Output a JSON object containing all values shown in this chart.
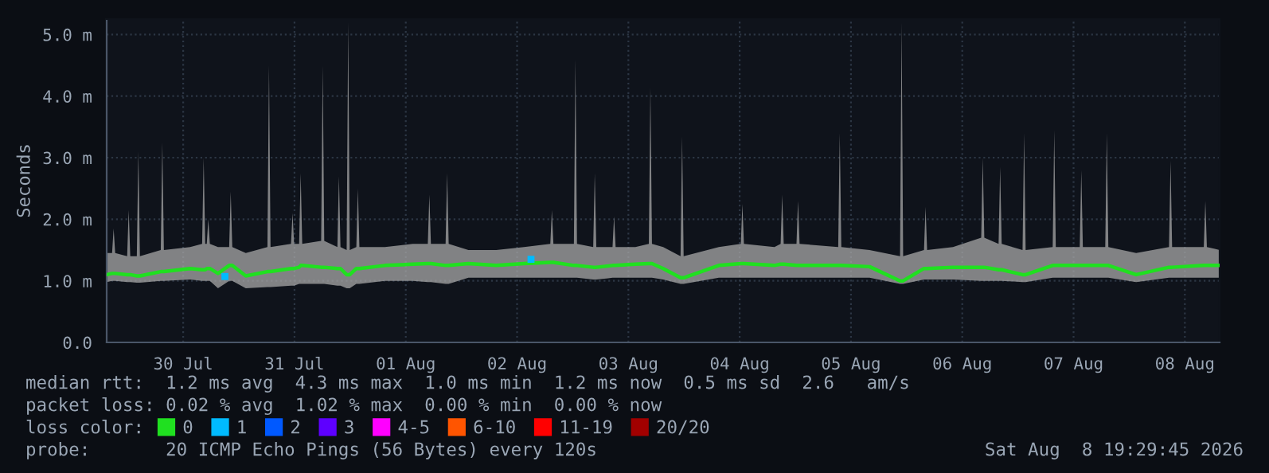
{
  "chart_data": {
    "type": "line",
    "ylabel": "Seconds",
    "xlim": [
      "2026-07-29T19:30",
      "2026-08-08T19:30"
    ],
    "xticks": [
      {
        "value": "2026-07-30T12:00",
        "label": "30 Jul"
      },
      {
        "value": "2026-07-31T12:00",
        "label": "31 Jul"
      },
      {
        "value": "2026-08-01T12:00",
        "label": "01 Aug"
      },
      {
        "value": "2026-08-02T12:00",
        "label": "02 Aug"
      },
      {
        "value": "2026-08-03T12:00",
        "label": "03 Aug"
      },
      {
        "value": "2026-08-04T12:00",
        "label": "04 Aug"
      },
      {
        "value": "2026-08-05T12:00",
        "label": "05 Aug"
      },
      {
        "value": "2026-08-06T12:00",
        "label": "06 Aug"
      },
      {
        "value": "2026-08-07T12:00",
        "label": "07 Aug"
      },
      {
        "value": "2026-08-08T12:00",
        "label": "08 Aug"
      }
    ],
    "ylim": [
      0,
      5.25
    ],
    "yticks": [
      {
        "value": 0,
        "label": "0.0"
      },
      {
        "value": 1,
        "label": "1.0 m"
      },
      {
        "value": 2,
        "label": "2.0 m"
      },
      {
        "value": 3,
        "label": "3.0 m"
      },
      {
        "value": 4,
        "label": "4.0 m"
      },
      {
        "value": 5,
        "label": "5.0 m"
      }
    ],
    "grid": true,
    "legend": "bottom",
    "legend_title": "loss color:",
    "series": [
      {
        "name": "0",
        "color": "#20e020",
        "x": [
          "2026-07-29T19:30",
          "2026-07-29T20:40",
          "2026-07-29T21:00",
          "2026-07-29T21:20",
          "2026-07-29T23:55",
          "2026-07-30T00:15",
          "2026-07-30T00:35",
          "2026-07-30T02:00",
          "2026-07-30T02:20",
          "2026-07-30T02:40",
          "2026-07-30T07:10",
          "2026-07-30T07:30",
          "2026-07-30T07:50",
          "2026-07-30T13:30",
          "2026-07-30T16:05",
          "2026-07-30T16:25",
          "2026-07-30T16:45",
          "2026-07-30T17:05",
          "2026-07-30T17:25",
          "2026-07-30T17:45",
          "2026-07-30T19:30",
          "2026-07-30T21:55",
          "2026-07-30T22:15",
          "2026-07-30T22:35",
          "2026-07-31T01:30",
          "2026-07-31T06:10",
          "2026-07-31T06:30",
          "2026-07-31T06:50",
          "2026-07-31T11:15",
          "2026-07-31T11:35",
          "2026-07-31T11:55",
          "2026-07-31T13:00",
          "2026-07-31T13:20",
          "2026-07-31T13:40",
          "2026-07-31T17:45",
          "2026-07-31T18:05",
          "2026-07-31T18:25",
          "2026-07-31T21:15",
          "2026-07-31T21:35",
          "2026-07-31T21:55",
          "2026-07-31T23:15",
          "2026-07-31T23:35",
          "2026-07-31T23:55",
          "2026-08-01T01:20",
          "2026-08-01T01:40",
          "2026-08-01T02:00",
          "2026-08-01T07:30",
          "2026-08-01T13:30",
          "2026-08-01T16:45",
          "2026-08-01T17:05",
          "2026-08-01T17:25",
          "2026-08-01T20:35",
          "2026-08-01T20:55",
          "2026-08-01T21:15",
          "2026-08-02T01:30",
          "2026-08-02T07:30",
          "2026-08-02T13:30",
          "2026-08-02T19:10",
          "2026-08-02T19:30",
          "2026-08-02T19:50",
          "2026-08-03T00:15",
          "2026-08-03T00:35",
          "2026-08-03T00:55",
          "2026-08-03T04:25",
          "2026-08-03T04:45",
          "2026-08-03T05:05",
          "2026-08-03T08:35",
          "2026-08-03T08:55",
          "2026-08-03T09:15",
          "2026-08-03T13:30",
          "2026-08-03T16:25",
          "2026-08-03T16:45",
          "2026-08-03T17:05",
          "2026-08-03T19:30",
          "2026-08-03T23:15",
          "2026-08-03T23:35",
          "2026-08-03T23:55",
          "2026-08-04T07:30",
          "2026-08-04T12:15",
          "2026-08-04T12:35",
          "2026-08-04T12:55",
          "2026-08-04T19:30",
          "2026-08-04T20:50",
          "2026-08-04T21:10",
          "2026-08-04T21:30",
          "2026-08-05T00:15",
          "2026-08-05T00:35",
          "2026-08-05T00:55",
          "2026-08-05T09:15",
          "2026-08-05T09:35",
          "2026-08-05T09:55",
          "2026-08-05T16:00",
          "2026-08-05T22:35",
          "2026-08-05T22:55",
          "2026-08-05T23:15",
          "2026-08-06T03:45",
          "2026-08-06T04:05",
          "2026-08-06T04:25",
          "2026-08-06T10:00",
          "2026-08-06T16:05",
          "2026-08-06T16:25",
          "2026-08-06T16:45",
          "2026-08-06T19:50",
          "2026-08-06T20:10",
          "2026-08-06T20:30",
          "2026-08-07T01:00",
          "2026-08-07T01:20",
          "2026-08-07T01:40",
          "2026-08-07T07:30",
          "2026-08-07T07:50",
          "2026-08-07T08:10",
          "2026-08-07T13:20",
          "2026-08-07T13:40",
          "2026-08-07T14:00",
          "2026-08-07T18:50",
          "2026-08-07T19:10",
          "2026-08-07T19:30",
          "2026-08-08T01:30",
          "2026-08-08T08:35",
          "2026-08-08T08:55",
          "2026-08-08T09:15",
          "2026-08-08T16:05",
          "2026-08-08T16:25",
          "2026-08-08T16:45",
          "2026-08-08T19:30"
        ],
        "values": [
          1.1,
          1.12,
          1.12,
          1.12,
          1.1,
          1.1,
          1.1,
          1.08,
          1.08,
          1.08,
          1.15,
          1.15,
          1.15,
          1.2,
          1.18,
          1.18,
          1.18,
          1.2,
          1.2,
          1.2,
          1.12,
          1.25,
          1.25,
          1.25,
          1.08,
          1.15,
          1.15,
          1.15,
          1.2,
          1.2,
          1.2,
          1.22,
          1.25,
          1.25,
          1.22,
          1.22,
          1.22,
          1.2,
          1.2,
          1.2,
          1.1,
          1.1,
          1.1,
          1.2,
          1.2,
          1.2,
          1.25,
          1.27,
          1.28,
          1.28,
          1.28,
          1.25,
          1.25,
          1.25,
          1.28,
          1.25,
          1.28,
          1.3,
          1.3,
          1.3,
          1.25,
          1.25,
          1.25,
          1.22,
          1.22,
          1.22,
          1.25,
          1.25,
          1.25,
          1.27,
          1.28,
          1.28,
          1.28,
          1.2,
          1.05,
          1.05,
          1.05,
          1.25,
          1.28,
          1.28,
          1.28,
          1.25,
          1.27,
          1.27,
          1.27,
          1.25,
          1.25,
          1.25,
          1.25,
          1.25,
          1.25,
          1.23,
          1.0,
          1.0,
          1.0,
          1.2,
          1.2,
          1.2,
          1.22,
          1.22,
          1.22,
          1.22,
          1.18,
          1.18,
          1.18,
          1.1,
          1.1,
          1.1,
          1.25,
          1.25,
          1.25,
          1.25,
          1.25,
          1.25,
          1.25,
          1.25,
          1.25,
          1.1,
          1.22,
          1.22,
          1.22,
          1.25,
          1.25,
          1.25,
          1.25
        ],
        "lower": [
          0.98,
          1.0,
          1.0,
          1.0,
          0.98,
          0.98,
          0.98,
          0.97,
          0.97,
          0.97,
          1.0,
          1.0,
          1.0,
          1.02,
          1.0,
          1.0,
          1.0,
          1.0,
          1.0,
          1.0,
          0.88,
          1.0,
          1.0,
          1.0,
          0.88,
          0.9,
          0.9,
          0.9,
          0.92,
          0.92,
          0.92,
          0.95,
          0.95,
          0.95,
          0.95,
          0.95,
          0.95,
          0.92,
          0.92,
          0.92,
          0.88,
          0.88,
          0.88,
          0.95,
          0.95,
          0.95,
          1.0,
          1.0,
          0.98,
          0.98,
          0.98,
          0.95,
          0.95,
          0.95,
          1.05,
          1.05,
          1.05,
          1.05,
          1.05,
          1.05,
          1.05,
          1.05,
          1.05,
          1.02,
          1.02,
          1.02,
          1.05,
          1.05,
          1.05,
          1.05,
          1.05,
          1.05,
          1.05,
          1.02,
          0.95,
          0.95,
          0.95,
          1.05,
          1.05,
          1.05,
          1.05,
          1.05,
          1.05,
          1.05,
          1.05,
          1.05,
          1.05,
          1.05,
          1.05,
          1.05,
          1.05,
          1.05,
          0.95,
          0.95,
          0.95,
          1.02,
          1.02,
          1.02,
          1.02,
          1.0,
          1.0,
          1.0,
          1.0,
          1.0,
          1.0,
          0.98,
          0.98,
          0.98,
          1.05,
          1.05,
          1.05,
          1.05,
          1.05,
          1.05,
          1.05,
          1.05,
          1.05,
          0.98,
          1.05,
          1.05,
          1.05,
          1.05,
          1.05,
          1.05,
          1.05
        ],
        "upper": [
          1.45,
          1.45,
          1.85,
          1.45,
          1.4,
          2.15,
          1.4,
          1.4,
          3.1,
          1.4,
          1.5,
          3.25,
          1.5,
          1.55,
          1.6,
          3.0,
          1.6,
          1.6,
          2.0,
          1.6,
          1.55,
          1.55,
          2.45,
          1.55,
          1.45,
          1.55,
          4.5,
          1.55,
          1.6,
          2.1,
          1.6,
          1.6,
          2.75,
          1.6,
          1.65,
          4.5,
          1.65,
          1.55,
          2.7,
          1.55,
          1.5,
          5.2,
          1.5,
          1.55,
          2.5,
          1.55,
          1.55,
          1.6,
          1.6,
          2.4,
          1.6,
          1.6,
          2.75,
          1.6,
          1.5,
          1.5,
          1.55,
          1.6,
          2.15,
          1.6,
          1.6,
          4.6,
          1.6,
          1.55,
          2.75,
          1.55,
          1.55,
          2.05,
          1.55,
          1.55,
          1.6,
          4.15,
          1.6,
          1.55,
          1.4,
          3.35,
          1.4,
          1.55,
          1.6,
          2.25,
          1.6,
          1.55,
          1.6,
          2.4,
          1.6,
          1.6,
          2.3,
          1.6,
          1.55,
          3.4,
          1.55,
          1.5,
          1.4,
          5.2,
          1.4,
          1.5,
          2.2,
          1.5,
          1.55,
          1.7,
          3.0,
          1.7,
          1.6,
          2.85,
          1.6,
          1.5,
          3.4,
          1.5,
          1.55,
          3.45,
          1.55,
          1.55,
          2.8,
          1.55,
          1.55,
          3.4,
          1.55,
          1.45,
          1.55,
          2.95,
          1.55,
          1.55,
          2.3,
          1.55,
          1.5
        ]
      },
      {
        "name": "1",
        "color": "#00bbff",
        "type": "scatter",
        "marker": "square",
        "x": [
          "2026-07-30T21:00",
          "2026-08-02T15:00"
        ],
        "values": [
          1.07,
          1.35
        ]
      },
      {
        "name": "2",
        "color": "#0059ff",
        "type": "scatter",
        "marker": "square"
      },
      {
        "name": "3",
        "color": "#5e00ff",
        "type": "scatter",
        "marker": "square"
      },
      {
        "name": "4-5",
        "color": "#ff00ff",
        "type": "scatter",
        "marker": "square"
      },
      {
        "name": "6-10",
        "color": "#ff5500",
        "type": "scatter",
        "marker": "square"
      },
      {
        "name": "11-19",
        "color": "#ff0000",
        "type": "scatter",
        "marker": "square"
      },
      {
        "name": "20/20",
        "color": "#a10000",
        "type": "scatter",
        "marker": "square"
      }
    ],
    "annotations": [
      "median rtt:  1.2 ms avg  4.3 ms max  1.0 ms min  1.2 ms now  0.5 ms sd  2.6   am/s",
      "packet loss: 0.02 % avg  1.02 % max  0.00 % min  0.00 % now",
      "probe:       20 ICMP Echo Pings (56 Bytes) every 120s",
      "Sat Aug  8 19:29:45 2026"
    ]
  }
}
